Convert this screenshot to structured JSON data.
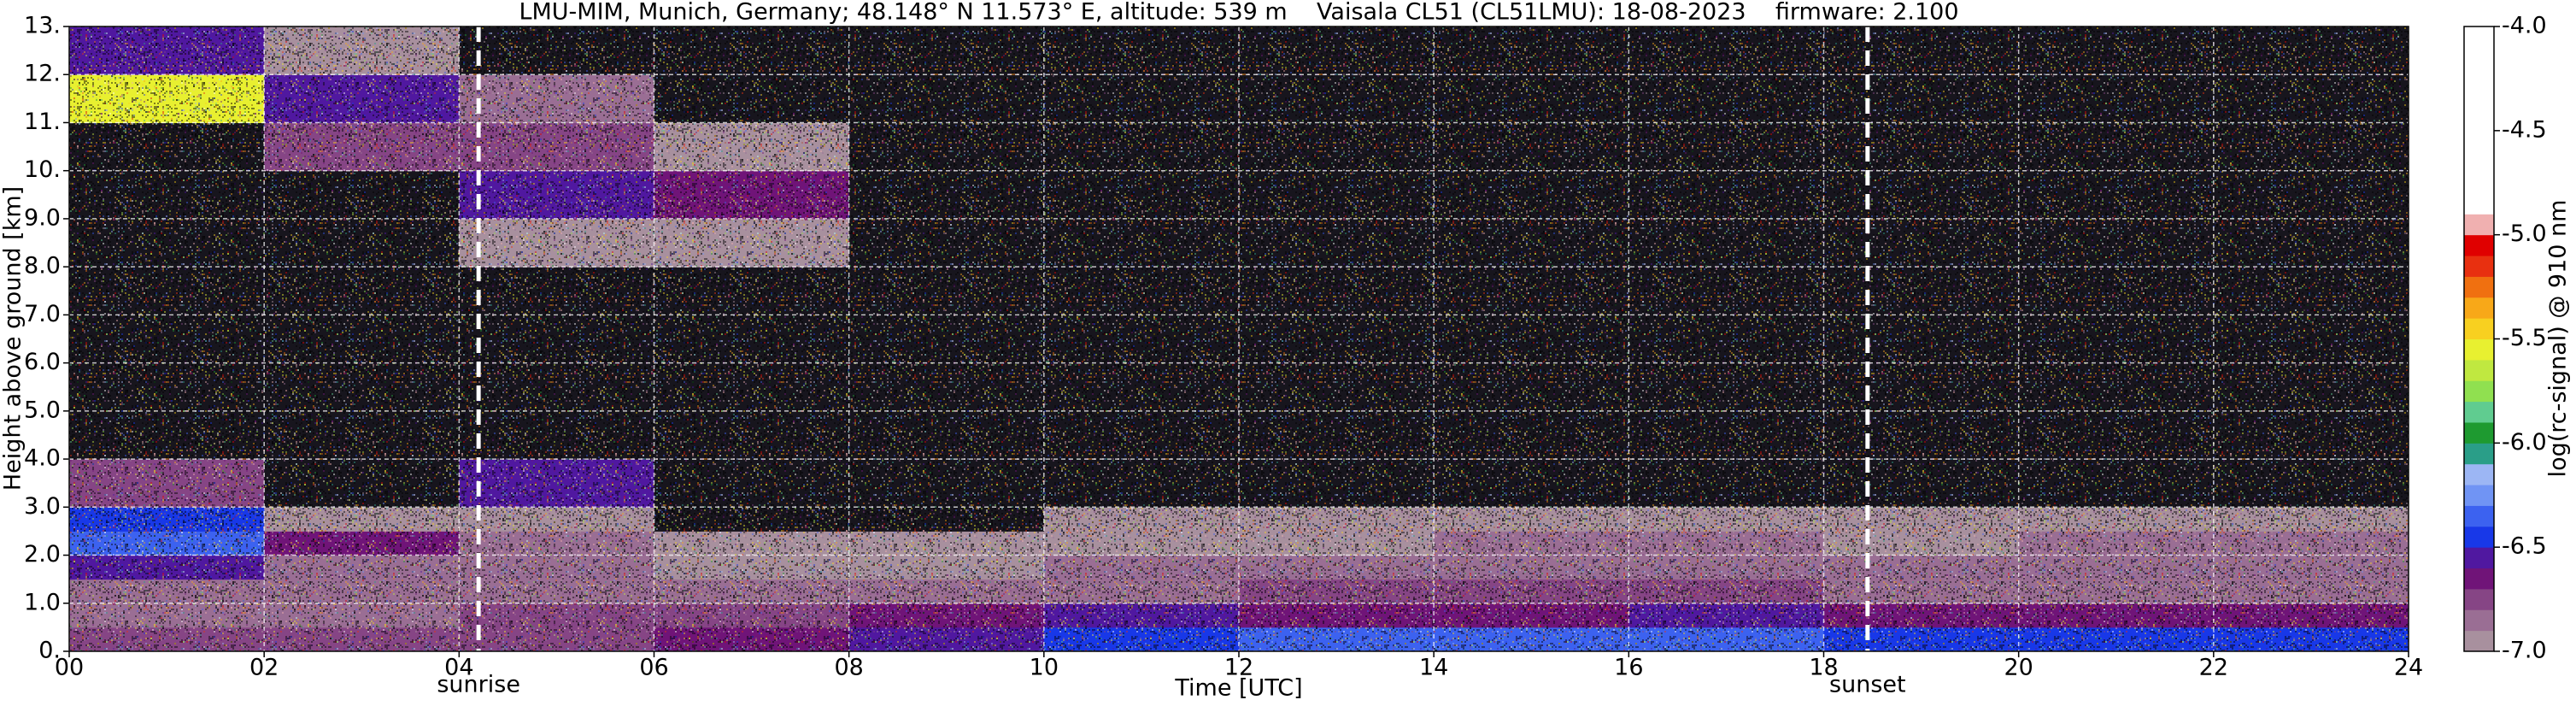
{
  "chart_data": {
    "type": "heatmap",
    "title": "LMU-MIM, Munich, Germany; 48.148° N 11.573° E, altitude: 539 m    Vaisala CL51 (CL51LMU): 18-08-2023    firmware: 2.100",
    "x_label": "Time [UTC]",
    "y_label": "Height above ground [km]",
    "colorbar_label": "log(rc-signal) @ 910 nm",
    "xlim": [
      0,
      24
    ],
    "xticks": [
      {
        "value": 0,
        "label": "00"
      },
      {
        "value": 2,
        "label": "02"
      },
      {
        "value": 4,
        "label": "04"
      },
      {
        "value": 6,
        "label": "06"
      },
      {
        "value": 8,
        "label": "08"
      },
      10,
      12,
      14,
      16,
      18,
      20,
      22,
      24
    ],
    "ylim": [
      0,
      13
    ],
    "yticks": [
      {
        "value": 0,
        "label": "0."
      },
      {
        "value": 1,
        "label": "1.0"
      },
      {
        "value": 2,
        "label": "2.0"
      },
      {
        "value": 3,
        "label": "3.0"
      },
      {
        "value": 4,
        "label": "4.0"
      },
      {
        "value": 5,
        "label": "5.0"
      },
      {
        "value": 6,
        "label": "6.0"
      },
      {
        "value": 7,
        "label": "7.0"
      },
      {
        "value": 8,
        "label": "8.0"
      },
      {
        "value": 9,
        "label": "9.0"
      },
      {
        "value": 10,
        "label": "10."
      },
      {
        "value": 11,
        "label": "11."
      },
      {
        "value": 12,
        "label": "12."
      },
      {
        "value": 13,
        "label": "13."
      }
    ],
    "grid": true,
    "xbins": [
      0,
      2,
      4,
      6,
      8,
      10,
      12,
      14,
      16,
      18,
      20,
      22,
      24
    ],
    "ybins": [
      0,
      0.5,
      1,
      1.5,
      2,
      2.5,
      3,
      4,
      5,
      6,
      7,
      8,
      9,
      10,
      11,
      12,
      13
    ],
    "z": [
      [
        -6.8,
        -6.8,
        -6.75,
        -6.7,
        -6.6,
        -6.45,
        -6.4,
        -6.4,
        -6.4,
        -6.45,
        -6.5,
        -6.5
      ],
      [
        -6.85,
        -6.85,
        -6.8,
        -6.75,
        -6.7,
        -6.6,
        -6.65,
        -6.65,
        -6.6,
        -6.7,
        -6.7,
        -6.7
      ],
      [
        -6.9,
        -6.9,
        -6.85,
        -6.9,
        -6.9,
        -6.85,
        -6.8,
        -6.8,
        -6.8,
        -6.85,
        -6.85,
        -6.85
      ],
      [
        -6.6,
        -6.9,
        -6.9,
        -6.95,
        -6.95,
        -6.9,
        -6.9,
        -6.85,
        -6.85,
        -6.9,
        -6.9,
        -6.9
      ],
      [
        -6.4,
        -6.7,
        -6.9,
        -7.0,
        -7.0,
        -6.95,
        -6.95,
        -6.9,
        -6.9,
        -6.95,
        -6.9,
        -6.9
      ],
      [
        -6.5,
        -6.95,
        -7.0,
        -7.05,
        -7.05,
        -7.0,
        -7.0,
        -7.0,
        -7.0,
        -7.0,
        -7.0,
        -7.0
      ],
      [
        -6.8,
        -7.1,
        -6.6,
        -7.1,
        -7.1,
        -7.1,
        -7.1,
        -7.1,
        -7.1,
        -7.1,
        -7.1,
        -7.1
      ],
      [
        -7.1,
        -7.15,
        -7.15,
        -7.15,
        -7.15,
        -7.15,
        -7.2,
        -7.2,
        -7.2,
        -7.2,
        -7.2,
        -7.2
      ],
      [
        -7.15,
        -7.2,
        -7.2,
        -7.2,
        -7.2,
        -7.2,
        -7.2,
        -7.2,
        -7.2,
        -7.2,
        -7.2,
        -7.2
      ],
      [
        -7.1,
        -7.15,
        -7.15,
        -7.15,
        -7.2,
        -7.2,
        -7.2,
        -7.2,
        -7.2,
        -7.2,
        -7.2,
        -7.2
      ],
      [
        -7.1,
        -7.15,
        -7.1,
        -7.15,
        -7.2,
        -7.2,
        -7.2,
        -7.2,
        -7.2,
        -7.2,
        -7.2,
        -7.2
      ],
      [
        -7.15,
        -7.2,
        -7.0,
        -6.95,
        -7.1,
        -7.2,
        -7.2,
        -7.2,
        -7.2,
        -7.2,
        -7.2,
        -7.2
      ],
      [
        -7.15,
        -7.15,
        -6.6,
        -6.7,
        -7.1,
        -7.2,
        -7.2,
        -7.2,
        -7.2,
        -7.2,
        -7.2,
        -7.2
      ],
      [
        -7.1,
        -6.8,
        -6.8,
        -6.95,
        -7.1,
        -7.2,
        -7.2,
        -7.2,
        -7.2,
        -7.2,
        -7.2,
        -7.2
      ],
      [
        -5.6,
        -6.6,
        -6.9,
        -7.1,
        -7.15,
        -7.2,
        -7.2,
        -7.2,
        -7.2,
        -7.2,
        -7.2,
        -7.2
      ],
      [
        -6.6,
        -7.0,
        -7.1,
        -7.15,
        -7.2,
        -7.2,
        -7.2,
        -7.2,
        -7.2,
        -7.2,
        -7.2,
        -7.2
      ]
    ],
    "clim": [
      -7,
      -4
    ],
    "cticks": [
      {
        "value": -7,
        "label": "-7.0"
      },
      -6.5,
      {
        "value": -6,
        "label": "-6.0"
      },
      -5.5,
      {
        "value": -5,
        "label": "-5.0"
      },
      -4.5,
      {
        "value": -4,
        "label": "-4.0"
      }
    ],
    "colorscale": {
      "bounds": [
        -7.0,
        -6.9,
        -6.8,
        -6.7,
        -6.6,
        -6.5,
        -6.4,
        -6.3,
        -6.2,
        -6.1,
        -6.0,
        -5.9,
        -5.8,
        -5.7,
        -5.6,
        -5.5,
        -5.4,
        -5.3,
        -5.2,
        -5.1,
        -5.0,
        -4.9,
        -4.0
      ],
      "colors": [
        "#a8909e",
        "#9a6e94",
        "#864585",
        "#701478",
        "#5018a0",
        "#1838e8",
        "#3c62f0",
        "#7094f4",
        "#9cb6f4",
        "#2a9e88",
        "#1e9a30",
        "#60cc90",
        "#90e050",
        "#c0e840",
        "#e8f030",
        "#f8d020",
        "#f8a818",
        "#f07010",
        "#e83010",
        "#e00000",
        "#f0b0b0",
        "#ffffff"
      ]
    },
    "under_color": "#17151d",
    "annotations": [
      {
        "x": 4.2,
        "label": "sunrise"
      },
      {
        "x": 18.45,
        "label": "sunset"
      }
    ]
  }
}
